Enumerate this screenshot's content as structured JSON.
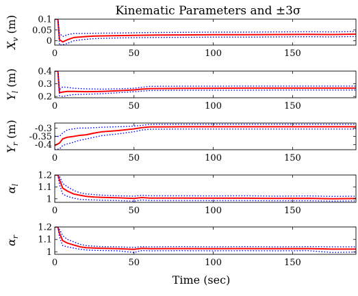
{
  "title": "Kinematic Parameters and ±3σ",
  "xlabel": "Time (sec)",
  "colors": {
    "mean": "#ff0000",
    "bounds": "#0000ff"
  },
  "chart_data": [
    {
      "type": "line",
      "id": "xv",
      "ylabel": "X_v (m)",
      "xlim": [
        0,
        190
      ],
      "ylim": [
        -0.02,
        0.1
      ],
      "xticks": [
        0,
        50,
        100,
        150
      ],
      "xtick_labels": [
        "0",
        "50",
        "100",
        "150"
      ],
      "yticks": [
        0,
        0.05,
        0.1
      ],
      "ytick_labels": [
        "0",
        "0.05",
        "0.1"
      ],
      "x": [
        0,
        2,
        3,
        5,
        8,
        12,
        18,
        25,
        40,
        60,
        80,
        100,
        120,
        140,
        160,
        175,
        190
      ],
      "series": [
        {
          "role": "upper",
          "values": [
            0.1,
            0.1,
            0.035,
            0.02,
            0.028,
            0.034,
            0.034,
            0.035,
            0.036,
            0.038,
            0.039,
            0.04,
            0.04,
            0.041,
            0.042,
            0.041,
            0.043
          ]
        },
        {
          "role": "mean",
          "values": [
            0.1,
            0.1,
            0.005,
            -0.005,
            0.005,
            0.015,
            0.019,
            0.022,
            0.024,
            0.026,
            0.027,
            0.028,
            0.028,
            0.029,
            0.03,
            0.029,
            0.031
          ]
        },
        {
          "role": "lower",
          "values": [
            0.1,
            0.1,
            -0.02,
            -0.018,
            -0.012,
            0.0,
            0.006,
            0.01,
            0.013,
            0.015,
            0.016,
            0.017,
            0.017,
            0.018,
            0.019,
            0.018,
            0.02
          ]
        }
      ]
    },
    {
      "type": "line",
      "id": "yl",
      "ylabel": "Y_l (m)",
      "xlim": [
        0,
        190
      ],
      "ylim": [
        0.19,
        0.4
      ],
      "xticks": [
        0,
        50,
        100,
        150
      ],
      "xtick_labels": [
        "0",
        "50",
        "100",
        "150"
      ],
      "yticks": [
        0.2,
        0.3,
        0.4
      ],
      "ytick_labels": [
        "0.2",
        "0.3",
        "0.4"
      ],
      "x": [
        0,
        2,
        3,
        5,
        8,
        12,
        20,
        30,
        40,
        50,
        55,
        60,
        80,
        100,
        120,
        140,
        160,
        190
      ],
      "series": [
        {
          "role": "upper",
          "values": [
            0.4,
            0.4,
            0.255,
            0.275,
            0.272,
            0.265,
            0.26,
            0.258,
            0.26,
            0.265,
            0.272,
            0.28,
            0.281,
            0.281,
            0.282,
            0.282,
            0.282,
            0.282
          ]
        },
        {
          "role": "mean",
          "values": [
            0.4,
            0.4,
            0.23,
            0.235,
            0.24,
            0.24,
            0.238,
            0.24,
            0.245,
            0.252,
            0.258,
            0.262,
            0.264,
            0.265,
            0.266,
            0.266,
            0.266,
            0.266
          ]
        },
        {
          "role": "lower",
          "values": [
            0.4,
            0.4,
            0.205,
            0.2,
            0.208,
            0.215,
            0.218,
            0.222,
            0.23,
            0.238,
            0.243,
            0.247,
            0.249,
            0.25,
            0.25,
            0.251,
            0.251,
            0.251
          ]
        }
      ]
    },
    {
      "type": "line",
      "id": "yr",
      "ylabel": "Y_r (m)",
      "xlim": [
        0,
        190
      ],
      "ylim": [
        -0.43,
        -0.27
      ],
      "xticks": [
        0,
        50,
        100,
        150
      ],
      "xtick_labels": [
        "0",
        "50",
        "100",
        "150"
      ],
      "yticks": [
        -0.4,
        -0.35,
        -0.3
      ],
      "ytick_labels": [
        "-0.4",
        "-0.35",
        "-0.3"
      ],
      "x": [
        0,
        3,
        5,
        8,
        12,
        15,
        20,
        25,
        30,
        40,
        50,
        55,
        60,
        80,
        100,
        120,
        140,
        160,
        190
      ],
      "series": [
        {
          "role": "upper",
          "values": [
            -0.35,
            -0.35,
            -0.33,
            -0.31,
            -0.305,
            -0.3,
            -0.3,
            -0.298,
            -0.295,
            -0.292,
            -0.288,
            -0.284,
            -0.278,
            -0.277,
            -0.277,
            -0.277,
            -0.277,
            -0.277,
            -0.277
          ]
        },
        {
          "role": "mean",
          "values": [
            -0.405,
            -0.39,
            -0.365,
            -0.355,
            -0.35,
            -0.345,
            -0.34,
            -0.33,
            -0.322,
            -0.315,
            -0.305,
            -0.298,
            -0.293,
            -0.292,
            -0.292,
            -0.292,
            -0.292,
            -0.292,
            -0.292
          ]
        },
        {
          "role": "lower",
          "values": [
            -0.43,
            -0.425,
            -0.405,
            -0.395,
            -0.385,
            -0.375,
            -0.365,
            -0.355,
            -0.345,
            -0.335,
            -0.322,
            -0.312,
            -0.307,
            -0.306,
            -0.306,
            -0.306,
            -0.306,
            -0.306,
            -0.306
          ]
        }
      ]
    },
    {
      "type": "line",
      "id": "al",
      "ylabel": "α_l",
      "xlim": [
        0,
        190
      ],
      "ylim": [
        0.97,
        1.2
      ],
      "xticks": [
        0,
        50,
        100,
        150
      ],
      "xtick_labels": [
        "0",
        "50",
        "100",
        "150"
      ],
      "yticks": [
        1.0,
        1.1,
        1.2
      ],
      "ytick_labels": [
        "1",
        "1.1",
        "1.2"
      ],
      "x": [
        0,
        2,
        3,
        5,
        8,
        12,
        16,
        20,
        25,
        30,
        40,
        50,
        55,
        60,
        80,
        100,
        120,
        140,
        160,
        175,
        190
      ],
      "series": [
        {
          "role": "upper",
          "values": [
            1.2,
            1.2,
            1.19,
            1.13,
            1.1,
            1.07,
            1.05,
            1.04,
            1.035,
            1.03,
            1.025,
            1.022,
            1.03,
            1.025,
            1.025,
            1.024,
            1.025,
            1.022,
            1.024,
            1.02,
            1.022
          ]
        },
        {
          "role": "mean",
          "values": [
            1.2,
            1.2,
            1.16,
            1.09,
            1.065,
            1.04,
            1.03,
            1.02,
            1.015,
            1.012,
            1.008,
            1.003,
            1.01,
            1.006,
            1.006,
            1.005,
            1.005,
            1.003,
            1.004,
            1.0,
            1.002
          ]
        },
        {
          "role": "lower",
          "values": [
            1.2,
            1.2,
            1.12,
            1.04,
            1.02,
            1.005,
            0.995,
            0.992,
            0.99,
            0.988,
            0.985,
            0.98,
            0.99,
            0.985,
            0.985,
            0.985,
            0.985,
            0.983,
            0.984,
            0.98,
            0.982
          ]
        }
      ]
    },
    {
      "type": "line",
      "id": "ar",
      "ylabel": "α_r",
      "xlim": [
        0,
        190
      ],
      "ylim": [
        0.98,
        1.2
      ],
      "xticks": [
        0,
        50,
        100,
        150
      ],
      "xtick_labels": [
        "0",
        "50",
        "100",
        "150"
      ],
      "yticks": [
        1.0,
        1.1,
        1.2
      ],
      "ytick_labels": [
        "1",
        "1.1",
        "1.2"
      ],
      "x": [
        0,
        2,
        3,
        5,
        8,
        12,
        16,
        20,
        25,
        30,
        40,
        50,
        55,
        60,
        80,
        100,
        120,
        140,
        160,
        175,
        190
      ],
      "series": [
        {
          "role": "upper",
          "values": [
            1.2,
            1.2,
            1.18,
            1.13,
            1.1,
            1.08,
            1.06,
            1.05,
            1.045,
            1.042,
            1.04,
            1.035,
            1.042,
            1.04,
            1.042,
            1.04,
            1.042,
            1.04,
            1.042,
            1.04,
            1.04
          ]
        },
        {
          "role": "mean",
          "values": [
            1.2,
            1.2,
            1.15,
            1.09,
            1.07,
            1.055,
            1.04,
            1.033,
            1.03,
            1.028,
            1.025,
            1.02,
            1.028,
            1.025,
            1.026,
            1.025,
            1.026,
            1.025,
            1.026,
            1.022,
            1.022
          ]
        },
        {
          "role": "lower",
          "values": [
            1.2,
            1.2,
            1.12,
            1.05,
            1.04,
            1.03,
            1.02,
            1.015,
            1.012,
            1.01,
            1.008,
            0.995,
            1.01,
            1.008,
            1.009,
            1.008,
            1.009,
            1.008,
            1.009,
            0.995,
            0.998
          ]
        }
      ]
    }
  ]
}
